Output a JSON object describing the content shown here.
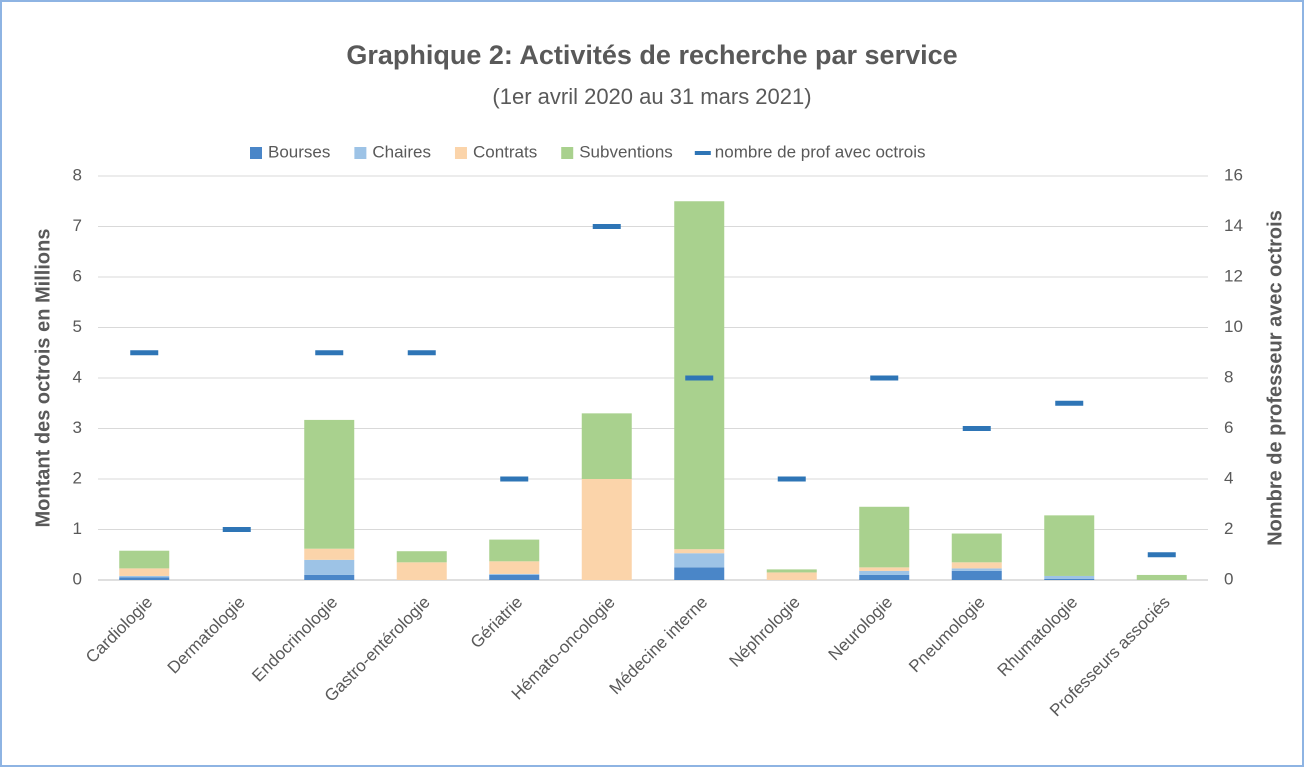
{
  "chart_data": {
    "type": "bar",
    "title": "Graphique 2: Activités de recherche par service",
    "subtitle": "(1er avril 2020 au 31 mars 2021)",
    "y_label": "Montant des octrois en Millions",
    "y2_label": "Nombre de professeur avec octrois",
    "stacked": true,
    "grid": true,
    "legend": "top",
    "categories": [
      "Cardiologie",
      "Dermatologie",
      "Endocrinologie",
      "Gastro-entérologie",
      "Gériatrie",
      "Hémato-oncologie",
      "Médecine interne",
      "Néphrologie",
      "Neurologie",
      "Pneumologie",
      "Rhumatologie",
      "Professeurs associés"
    ],
    "series": [
      {
        "name": "Bourses",
        "color": "#4a86c8",
        "values": [
          0.05,
          0,
          0.1,
          0,
          0.1,
          0,
          0.25,
          0,
          0.1,
          0.18,
          0.02,
          0
        ]
      },
      {
        "name": "Chaires",
        "color": "#9dc3e6",
        "values": [
          0.03,
          0,
          0.3,
          0,
          0.02,
          0,
          0.28,
          0,
          0.08,
          0.05,
          0.06,
          0
        ]
      },
      {
        "name": "Contrats",
        "color": "#fbd4aa",
        "values": [
          0.15,
          0,
          0.22,
          0.35,
          0.25,
          2.0,
          0.08,
          0.15,
          0.07,
          0.12,
          0,
          0
        ]
      },
      {
        "name": "Subventions",
        "color": "#a9d18e",
        "values": [
          0.35,
          0,
          2.55,
          0.22,
          0.43,
          1.3,
          6.89,
          0.06,
          1.2,
          0.57,
          1.2,
          0.1
        ]
      },
      {
        "name": "nombre de prof avec octrois",
        "color": "#2e75b6",
        "axis": "y2",
        "type": "marker",
        "values": [
          9,
          2,
          9,
          9,
          4,
          14,
          8,
          4,
          8,
          6,
          7,
          1
        ]
      }
    ],
    "ylim": [
      0,
      8
    ],
    "yticks": [
      0,
      1,
      2,
      3,
      4,
      5,
      6,
      7,
      8
    ],
    "y2lim": [
      0,
      16
    ],
    "y2ticks": [
      0,
      2,
      4,
      6,
      8,
      10,
      12,
      14,
      16
    ]
  }
}
